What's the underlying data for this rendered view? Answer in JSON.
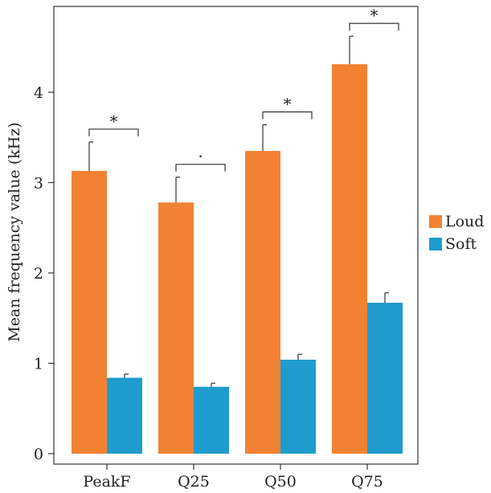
{
  "chart_data": {
    "type": "bar",
    "title": "",
    "xlabel": "",
    "ylabel": "Mean frequency value (kHz)",
    "categories": [
      "PeakF",
      "Q25",
      "Q50",
      "Q75"
    ],
    "ylim": [
      0,
      4.95
    ],
    "yticks": [
      0,
      1,
      2,
      3,
      4
    ],
    "series": [
      {
        "name": "Loud",
        "color": "#f28232",
        "values": [
          3.13,
          2.78,
          3.35,
          4.31
        ],
        "error": [
          0.32,
          0.28,
          0.29,
          0.31
        ]
      },
      {
        "name": "Soft",
        "color": "#1f9bce",
        "values": [
          0.84,
          0.74,
          1.04,
          1.67
        ],
        "error": [
          0.04,
          0.04,
          0.06,
          0.11
        ]
      }
    ],
    "significance": [
      "*",
      "·",
      "*",
      "*"
    ],
    "legend_position": "right",
    "grid": false
  }
}
